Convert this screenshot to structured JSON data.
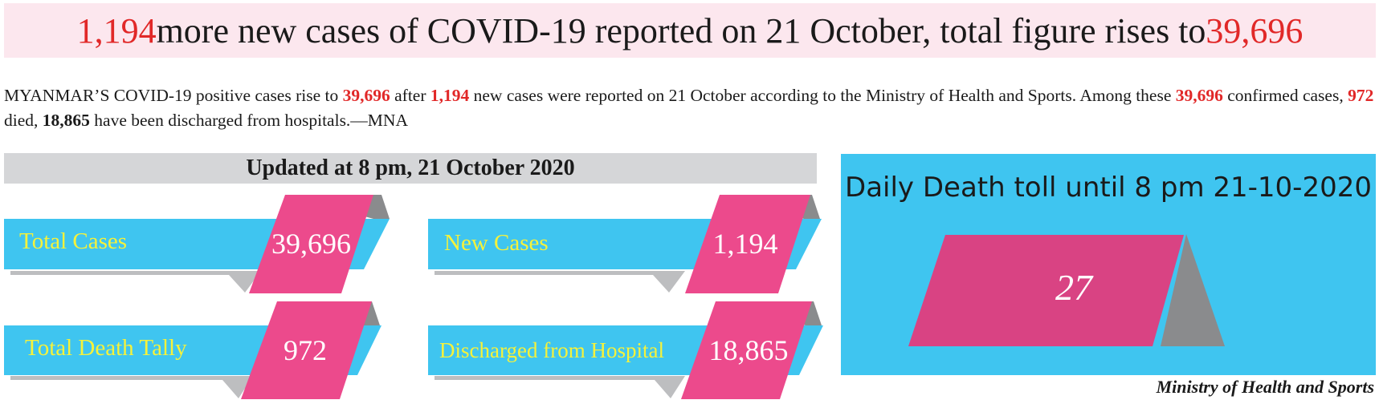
{
  "headline": {
    "new_cases": "1,194",
    "middle": " more new cases of COVID-19 reported on 21 October, total figure rises to ",
    "total": "39,696"
  },
  "lead": {
    "p1": "MYANMAR’S COVID-19 positive cases rise to ",
    "total1": "39,696",
    "p2": " after ",
    "new": "1,194",
    "p3": " new cases were reported on 21 October according to the Ministry of Health and Sports. Among these ",
    "total2": "39,696",
    "p4": " confirmed cases, ",
    "died": "972",
    "p5": " died, ",
    "discharged": "18,865",
    "p6": " have been discharged from hospitals.—MNA"
  },
  "updated": "Updated at 8 pm, 21 October 2020",
  "cards": {
    "total_cases": {
      "label": "Total Cases",
      "value": "39,696"
    },
    "new_cases": {
      "label": "New Cases",
      "value": "1,194"
    },
    "total_death": {
      "label": "Total Death Tally",
      "value": "972"
    },
    "discharged": {
      "label": "Discharged from Hospital",
      "value": "18,865"
    }
  },
  "death_panel": {
    "title": "Daily Death toll until 8 pm 21-10-2020",
    "value": "27"
  },
  "source": "Ministry of Health and Sports",
  "colors": {
    "cyan": "#3fc5f0",
    "pink": "#ec4a8c",
    "gray": "#8a8b8d",
    "label_yellow": "#f6f23a",
    "accent_red": "#e12828"
  }
}
